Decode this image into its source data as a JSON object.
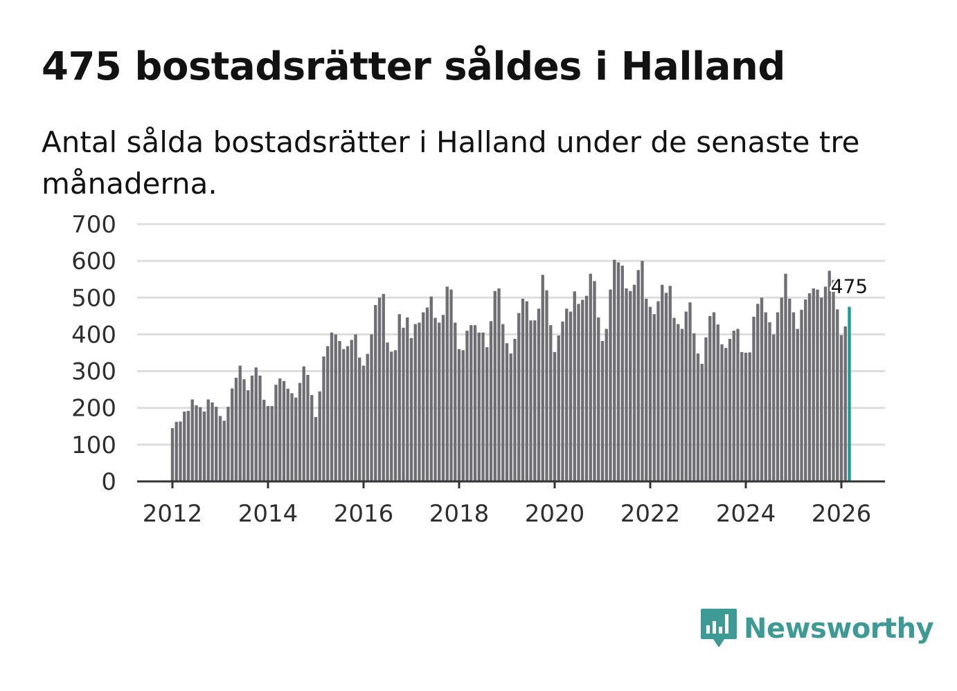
{
  "header": {
    "title": "475 bostadsrätter såldes i Halland",
    "subtitle": "Antal sålda bostadsrätter i Halland under de senaste tre månaderna."
  },
  "brand": {
    "name": "Newsworthy",
    "logo_icon": "bar-chart-speech-bubble-icon",
    "color": "#3d9a94"
  },
  "colors": {
    "bar": "#6f6e73",
    "highlight": "#1a9b94",
    "grid": "#dddddd",
    "axis": "#333333"
  },
  "chart_data": {
    "type": "bar",
    "title": "475 bostadsrätter såldes i Halland",
    "subtitle": "Antal sålda bostadsrätter i Halland under de senaste tre månaderna.",
    "xlabel": "",
    "ylabel": "",
    "ylim": [
      0,
      700
    ],
    "yticks": [
      0,
      100,
      200,
      300,
      400,
      500,
      600,
      700
    ],
    "xticks": [
      "2012",
      "2014",
      "2016",
      "2018",
      "2020",
      "2022",
      "2024",
      "2026"
    ],
    "grid": true,
    "start": "2012-01",
    "frequency": "monthly",
    "highlight_last": true,
    "last_label": "475",
    "values": [
      145,
      162,
      163,
      190,
      192,
      223,
      207,
      202,
      190,
      223,
      215,
      203,
      178,
      165,
      203,
      253,
      282,
      315,
      278,
      248,
      288,
      310,
      288,
      222,
      205,
      205,
      263,
      280,
      273,
      252,
      240,
      228,
      268,
      313,
      290,
      235,
      175,
      245,
      340,
      368,
      405,
      400,
      382,
      360,
      368,
      385,
      400,
      337,
      315,
      347,
      400,
      480,
      500,
      510,
      378,
      353,
      357,
      455,
      418,
      446,
      390,
      428,
      432,
      460,
      473,
      503,
      445,
      432,
      453,
      530,
      522,
      432,
      360,
      357,
      410,
      425,
      425,
      405,
      405,
      365,
      436,
      518,
      525,
      428,
      376,
      348,
      388,
      458,
      497,
      490,
      438,
      438,
      470,
      562,
      520,
      425,
      352,
      397,
      435,
      470,
      462,
      517,
      483,
      494,
      505,
      565,
      545,
      446,
      382,
      415,
      522,
      603,
      596,
      587,
      525,
      518,
      535,
      575,
      600,
      497,
      475,
      455,
      490,
      535,
      513,
      532,
      445,
      428,
      415,
      462,
      487,
      403,
      348,
      320,
      392,
      450,
      460,
      427,
      373,
      363,
      388,
      410,
      415,
      352,
      350,
      351,
      448,
      483,
      500,
      460,
      433,
      400,
      460,
      500,
      565,
      497,
      460,
      415,
      467,
      495,
      512,
      525,
      522,
      500,
      530,
      573,
      548,
      468,
      398,
      422,
      475
    ]
  }
}
